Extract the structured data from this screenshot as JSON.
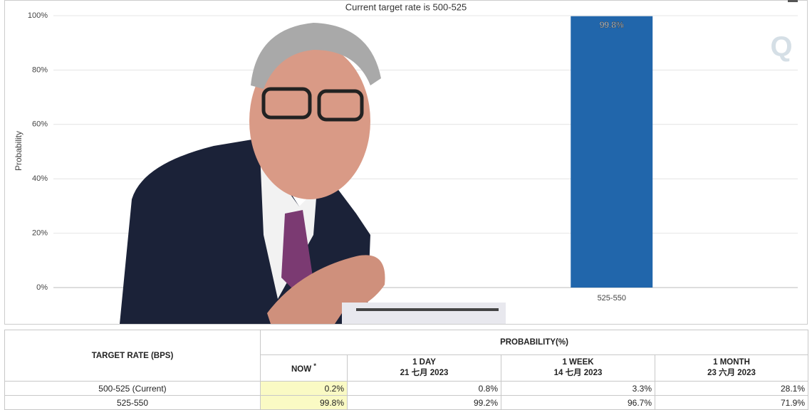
{
  "chart_data": {
    "type": "bar",
    "title": "Current target rate is 500-525",
    "y_label": "Probability",
    "categories": [
      null,
      "525-550"
    ],
    "values": [
      0.2,
      99.8
    ],
    "value_labels": [
      null,
      "99.8%"
    ],
    "color": "#2166ab",
    "ylim": [
      0,
      100
    ],
    "yticks": [
      {
        "value": 0,
        "label": "0%"
      },
      {
        "value": 20,
        "label": "20%"
      },
      {
        "value": 40,
        "label": "40%"
      },
      {
        "value": 60,
        "label": "60%"
      },
      {
        "value": 80,
        "label": "80%"
      },
      {
        "value": 100,
        "label": "100%"
      }
    ],
    "grid": true
  },
  "table": {
    "header": {
      "target": "TARGET RATE (BPS)",
      "probability": "PROBABILITY(%)",
      "columns": [
        {
          "title": "NOW",
          "note": "*"
        },
        {
          "title": "1 DAY",
          "date": "21 七月 2023"
        },
        {
          "title": "1 WEEK",
          "date": "14 七月 2023"
        },
        {
          "title": "1 MONTH",
          "date": "23 六月 2023"
        }
      ]
    },
    "rows": [
      [
        "500-525 (Current)",
        "0.2%",
        "0.8%",
        "3.3%",
        "28.1%"
      ],
      [
        "525-550",
        "99.8%",
        "99.2%",
        "96.7%",
        "71.9%"
      ]
    ]
  }
}
